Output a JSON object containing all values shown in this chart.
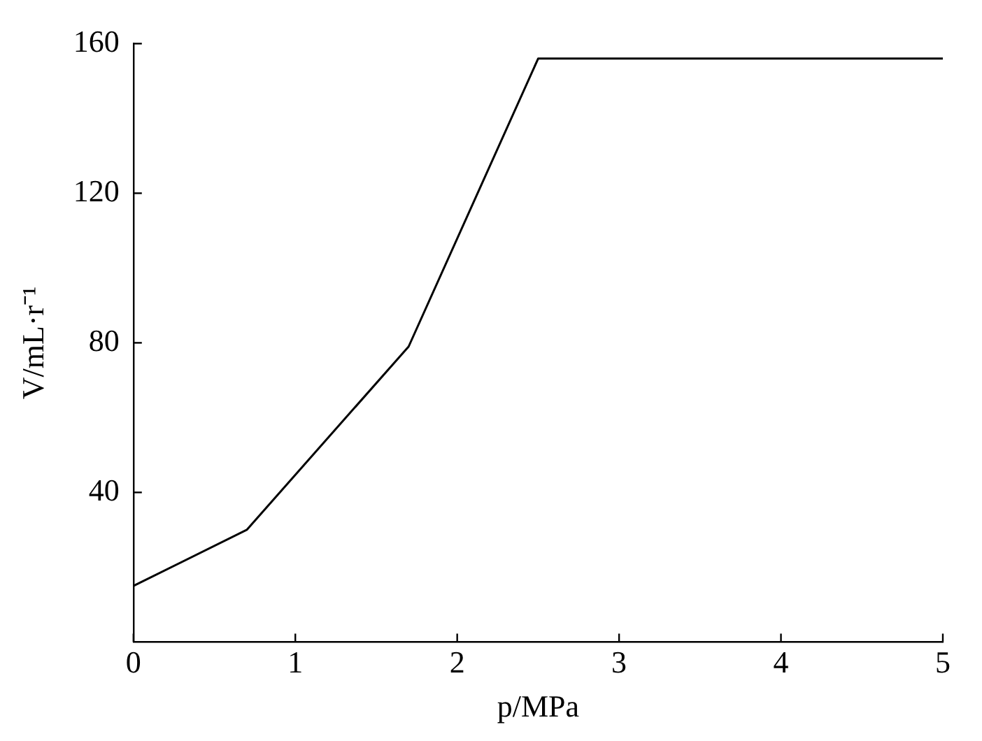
{
  "chart_data": {
    "type": "line",
    "xlabel": "p/MPa",
    "ylabel": "V/mL·r⁻¹",
    "x": [
      0,
      0.7,
      1.7,
      2.5,
      5
    ],
    "series": [
      {
        "color": "#000000",
        "values": [
          15,
          30,
          79,
          156,
          156
        ]
      }
    ],
    "xlim": [
      0,
      5
    ],
    "xticks": [
      0,
      1,
      2,
      3,
      4,
      5
    ],
    "ylim": [
      0,
      160
    ],
    "yticks": [
      40,
      80,
      120,
      160
    ],
    "grid": false,
    "legend": false,
    "marker": "none",
    "line_style": "solid"
  }
}
